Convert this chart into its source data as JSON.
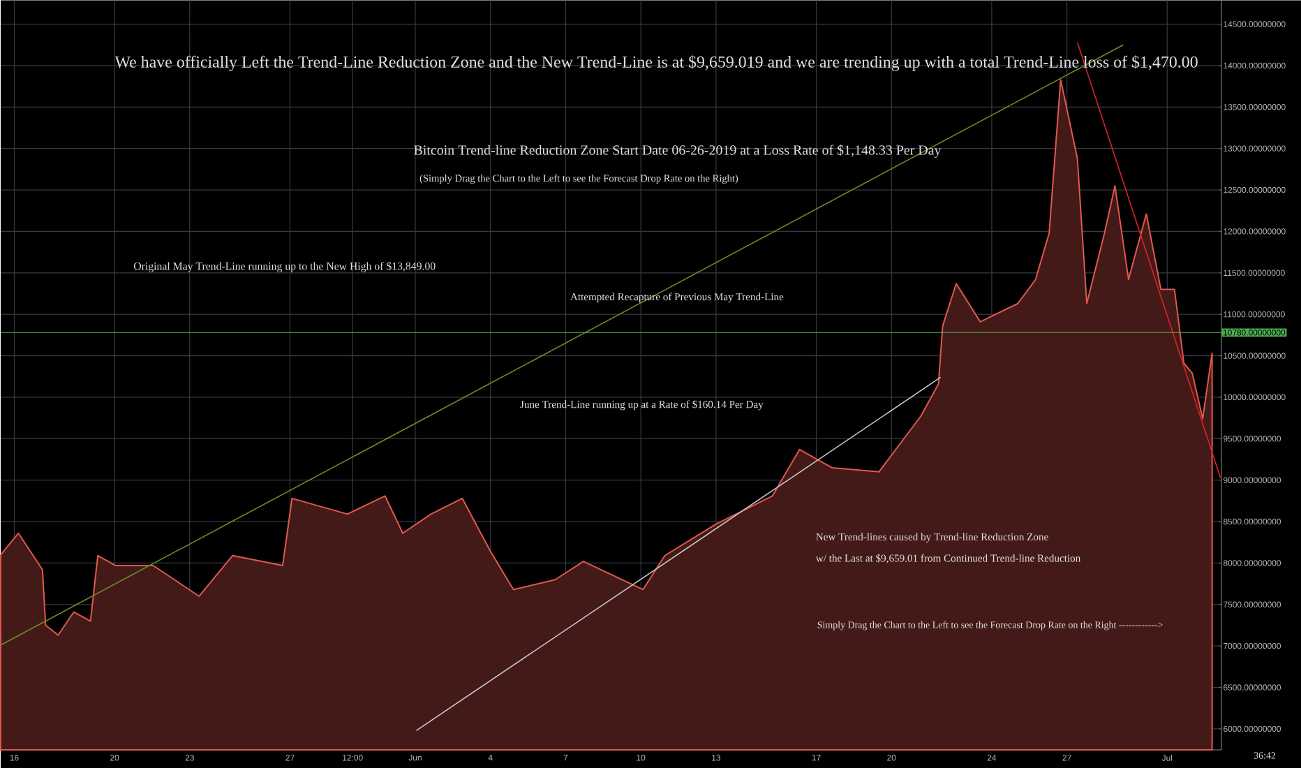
{
  "chart_data": {
    "type": "area",
    "title": "We have officially Left the Trend-Line Reduction Zone and the New Trend-Line is at $9,659.019 and we are trending up with a total Trend-Line loss of $1,470.00",
    "subtitle": "Bitcoin Trend-line Reduction Zone Start Date 06-26-2019 at a Loss Rate of $1,148.33 Per Day",
    "annotations": [
      "Original May Trend-Line running up to the New High of $13,849.00",
      "Attempted Recapture of Previous May Trend-Line",
      "June Trend-Line running up at a Rate of $160.14 Per Day",
      "(Simply Drag the Chart to the Left to see the Forecast Drop Rate on the Right)",
      "New Trend-lines caused by Trend-line Reduction Zone",
      "w/ the Last at $9,659.01 from Continued Trend-line Reduction",
      "Simply Drag the Chart to the Left to see the Forecast Drop Rate on the Right ------------>",
      "36:42"
    ],
    "xlim": [
      "2019-05-15T11:00",
      "2019-07-03T04:00"
    ],
    "xticks": [
      {
        "value": "2019-05-16",
        "label": "16"
      },
      {
        "value": "2019-05-20",
        "label": "20"
      },
      {
        "value": "2019-05-23",
        "label": "23"
      },
      {
        "value": "2019-05-27",
        "label": "27"
      },
      {
        "value": "2019-05-29T12:00",
        "label": "12:00"
      },
      {
        "value": "2019-06-01",
        "label": "Jun"
      },
      {
        "value": "2019-06-04",
        "label": "4"
      },
      {
        "value": "2019-06-07",
        "label": "7"
      },
      {
        "value": "2019-06-10",
        "label": "10"
      },
      {
        "value": "2019-06-13",
        "label": "13"
      },
      {
        "value": "2019-06-17",
        "label": "17"
      },
      {
        "value": "2019-06-20",
        "label": "20"
      },
      {
        "value": "2019-06-24",
        "label": "24"
      },
      {
        "value": "2019-06-27",
        "label": "27"
      },
      {
        "value": "2019-07-01",
        "label": "Jul"
      }
    ],
    "ylim": [
      5747,
      14786
    ],
    "yticks": [
      {
        "value": 6000,
        "label": "6000.00000000"
      },
      {
        "value": 6500,
        "label": "6500.00000000"
      },
      {
        "value": 7000,
        "label": "7000.00000000"
      },
      {
        "value": 7500,
        "label": "7500.00000000"
      },
      {
        "value": 8000,
        "label": "8000.00000000"
      },
      {
        "value": 8500,
        "label": "8500.00000000"
      },
      {
        "value": 9000,
        "label": "9000.00000000"
      },
      {
        "value": 9500,
        "label": "9500.00000000"
      },
      {
        "value": 10000,
        "label": "10000.00000000"
      },
      {
        "value": 10500,
        "label": "10500.00000000"
      },
      {
        "value": 11000,
        "label": "11000.00000000"
      },
      {
        "value": 11500,
        "label": "11500.00000000"
      },
      {
        "value": 12000,
        "label": "12000.00000000"
      },
      {
        "value": 12500,
        "label": "12500.00000000"
      },
      {
        "value": 13000,
        "label": "13000.00000000"
      },
      {
        "value": 13500,
        "label": "13500.00000000"
      },
      {
        "value": 14000,
        "label": "14000.00000000"
      },
      {
        "value": 14500,
        "label": "14500.00000000"
      }
    ],
    "grid": true,
    "ref_lines": [
      {
        "axis": "y",
        "value": 10780,
        "label": "10780.00000000",
        "color": "#4caf50"
      }
    ],
    "series": [
      {
        "color": "#e0584f",
        "x": [
          "2019-05-15T11:00",
          "2019-05-16T04:00",
          "2019-05-17T03:00",
          "2019-05-17T06:00",
          "2019-05-17T18:00",
          "2019-05-18T09:00",
          "2019-05-19T01:00",
          "2019-05-19T08:00",
          "2019-05-20T01:00",
          "2019-05-21T13:00",
          "2019-05-23T09:00",
          "2019-05-24T17:00",
          "2019-05-26T17:00",
          "2019-05-27T02:00",
          "2019-05-29T07:00",
          "2019-05-30T19:00",
          "2019-05-31T12:00",
          "2019-06-01T15:00",
          "2019-06-02T21:00",
          "2019-06-04T00:00",
          "2019-06-04T22:00",
          "2019-06-06T14:00",
          "2019-06-07T17:00",
          "2019-06-10T02:00",
          "2019-06-10T23:00",
          "2019-06-13T00:00",
          "2019-06-15T06:00",
          "2019-06-16T08:00",
          "2019-06-17T15:00",
          "2019-06-19T12:00",
          "2019-06-21T04:00",
          "2019-06-21T21:00",
          "2019-06-22T01:00",
          "2019-06-22T14:00",
          "2019-06-23T13:00",
          "2019-06-25T01:00",
          "2019-06-25T18:00",
          "2019-06-26T07:00",
          "2019-06-26T18:00",
          "2019-06-27T10:00",
          "2019-06-27T19:00",
          "2019-06-28T12:00",
          "2019-06-28T22:00",
          "2019-06-29T11:00",
          "2019-06-30T04:00",
          "2019-06-30T18:00",
          "2019-07-01T07:00",
          "2019-07-01T16:00",
          "2019-07-02T00:00",
          "2019-07-02T10:00",
          "2019-07-02T19:00"
        ],
        "values": [
          8100,
          8360,
          7920,
          7250,
          7130,
          7410,
          7300,
          8090,
          7970,
          7970,
          7600,
          8090,
          7970,
          8780,
          8590,
          8810,
          8360,
          8590,
          8780,
          8140,
          7680,
          7800,
          8020,
          7680,
          8090,
          8470,
          8810,
          9370,
          9150,
          9100,
          9770,
          10160,
          10860,
          11370,
          10910,
          11130,
          11420,
          11980,
          13830,
          12880,
          11130,
          11980,
          12550,
          11420,
          12210,
          11300,
          11300,
          10410,
          10290,
          9740,
          10530
        ]
      },
      {
        "type": "line",
        "color": "#6b8e23",
        "x": [
          "2019-05-15T11:00",
          "2019-06-29T06:00"
        ],
        "values": [
          7010,
          14250
        ]
      },
      {
        "type": "line",
        "color": "#c8c8c8",
        "x": [
          "2019-06-01T01:00",
          "2019-06-21T23:00"
        ],
        "values": [
          5980,
          10240
        ]
      },
      {
        "type": "line",
        "color": "#e0202a",
        "x": [
          "2019-06-27T10:00",
          "2019-07-03T03:00"
        ],
        "values": [
          14280,
          9030
        ]
      }
    ]
  }
}
